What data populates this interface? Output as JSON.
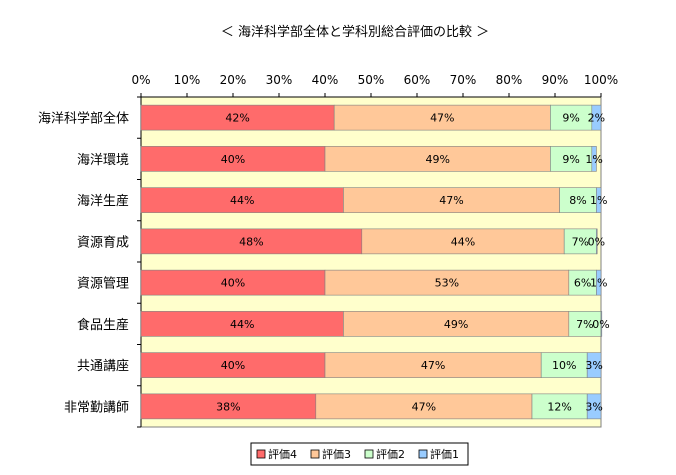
{
  "chart_data": {
    "type": "bar",
    "orientation": "horizontal",
    "stacked": "percent",
    "title": "＜ 海洋科学部全体と学科別総合評価の比較 ＞",
    "xlim": [
      0,
      100
    ],
    "x_ticks": [
      "0%",
      "10%",
      "20%",
      "30%",
      "40%",
      "50%",
      "60%",
      "70%",
      "80%",
      "90%",
      "100%"
    ],
    "categories": [
      "海洋科学部全体",
      "海洋環境",
      "海洋生産",
      "資源育成",
      "資源管理",
      "食品生産",
      "共通講座",
      "非常勤講師"
    ],
    "series": [
      {
        "name": "評価4",
        "color": "#ff6b6b",
        "values": [
          42,
          40,
          44,
          48,
          40,
          44,
          40,
          38
        ],
        "labels": [
          "42%",
          "40%",
          "44%",
          "48%",
          "40%",
          "44%",
          "40%",
          "38%"
        ]
      },
      {
        "name": "評価3",
        "color": "#ffc899",
        "values": [
          47,
          49,
          47,
          44,
          53,
          49,
          47,
          47
        ],
        "labels": [
          "47%",
          "49%",
          "47%",
          "44%",
          "53%",
          "49%",
          "47%",
          "47%"
        ]
      },
      {
        "name": "評価2",
        "color": "#ccffcc",
        "values": [
          9,
          9,
          8,
          7,
          6,
          7,
          10,
          12
        ],
        "labels": [
          "9%",
          "9%",
          "8%",
          "7%",
          "6%",
          "7%",
          "10%",
          "12%"
        ]
      },
      {
        "name": "評価1",
        "color": "#99ccff",
        "values": [
          2,
          1,
          1,
          0,
          1,
          0,
          3,
          3
        ],
        "labels": [
          "2%",
          "1%",
          "1%",
          "0%",
          "1%",
          "0%",
          "3%",
          "3%"
        ]
      }
    ],
    "plot_background": "#ffffcc",
    "legend_position": "bottom-center"
  }
}
